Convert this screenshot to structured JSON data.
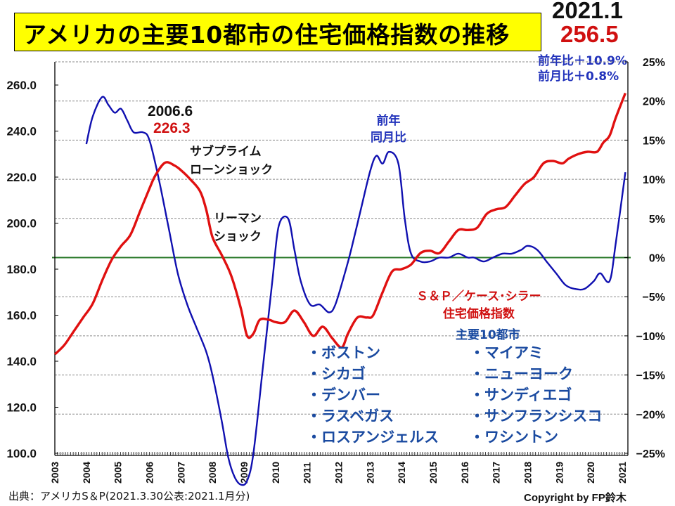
{
  "title": "アメリカの主要10都市の住宅価格指数の推移",
  "latest": {
    "date": "2021.1",
    "value": "256.5",
    "yoy": "前年比＋10.9%",
    "mom": "前月比＋0.8%"
  },
  "annotations": {
    "peak_date": "2006.6",
    "peak_value": "226.3",
    "subprime": [
      "サブプライム",
      "ローンショック"
    ],
    "lehman": [
      "リーマン",
      "ショック"
    ],
    "yoy_label": [
      "前年",
      "同月比"
    ]
  },
  "legend": {
    "index_name": [
      "Ｓ＆Ｐ／ケース･シラー",
      "住宅価格指数"
    ],
    "cities_title": "主要10都市",
    "cities_left": [
      "・ボストン",
      "・シカゴ",
      "・デンバー",
      "・ラスベガス",
      "・ロスアンジェルス"
    ],
    "cities_right": [
      "・マイアミ",
      "・ニューヨーク",
      "・サンディエゴ",
      "・サンフランシスコ",
      "・ワシントン"
    ]
  },
  "source": "出典：アメリカS＆P(2021.3.30公表:2021.1月分)",
  "copyright": "Copyright by FP鈴木",
  "colors": {
    "index_line": "#e01010",
    "yoy_line": "#1010b0",
    "zero_line": "#2a7a2a",
    "title_bg": "#ffff00"
  },
  "chart_data": {
    "type": "line",
    "title": "アメリカの主要10都市の住宅価格指数の推移",
    "xlabel": "",
    "ylabel": "",
    "x_range": [
      2003,
      2021.1
    ],
    "x_ticks": [
      "2003",
      "2004",
      "2005",
      "2006",
      "2007",
      "2008",
      "2009",
      "2010",
      "2011",
      "2012",
      "2013",
      "2014",
      "2015",
      "2016",
      "2017",
      "2018",
      "2019",
      "2020",
      "2021"
    ],
    "y_left": {
      "range": [
        100,
        260
      ],
      "ticks": [
        "100.0",
        "120.0",
        "140.0",
        "160.0",
        "180.0",
        "200.0",
        "220.0",
        "240.0",
        "260.0"
      ]
    },
    "y_right": {
      "range": [
        -25,
        25
      ],
      "ticks": [
        "-25%",
        "-20%",
        "-15%",
        "-10%",
        "-5%",
        "0%",
        "5%",
        "10%",
        "15%",
        "20%",
        "25%"
      ]
    },
    "grid": true,
    "series": [
      {
        "name": "S&P/ケース・シラー住宅価格指数 主要10都市",
        "axis": "left",
        "points": [
          [
            2003.0,
            143
          ],
          [
            2003.3,
            147
          ],
          [
            2003.6,
            153
          ],
          [
            2003.9,
            159
          ],
          [
            2004.2,
            165
          ],
          [
            2004.5,
            175
          ],
          [
            2004.8,
            184
          ],
          [
            2005.1,
            190
          ],
          [
            2005.4,
            195
          ],
          [
            2005.7,
            205
          ],
          [
            2006.0,
            215
          ],
          [
            2006.2,
            221
          ],
          [
            2006.5,
            226.3
          ],
          [
            2006.8,
            225
          ],
          [
            2007.0,
            223
          ],
          [
            2007.3,
            219
          ],
          [
            2007.6,
            214
          ],
          [
            2007.8,
            206
          ],
          [
            2008.0,
            194
          ],
          [
            2008.3,
            186
          ],
          [
            2008.6,
            177
          ],
          [
            2008.9,
            163
          ],
          [
            2009.1,
            151
          ],
          [
            2009.3,
            152
          ],
          [
            2009.5,
            158
          ],
          [
            2009.8,
            158
          ],
          [
            2010.0,
            157
          ],
          [
            2010.3,
            157
          ],
          [
            2010.6,
            162
          ],
          [
            2010.9,
            157
          ],
          [
            2011.2,
            151
          ],
          [
            2011.5,
            155
          ],
          [
            2011.8,
            150
          ],
          [
            2012.1,
            146
          ],
          [
            2012.3,
            152
          ],
          [
            2012.6,
            159
          ],
          [
            2012.9,
            159
          ],
          [
            2013.1,
            160
          ],
          [
            2013.4,
            170
          ],
          [
            2013.7,
            179
          ],
          [
            2014.0,
            180
          ],
          [
            2014.3,
            182
          ],
          [
            2014.6,
            187
          ],
          [
            2014.9,
            188
          ],
          [
            2015.2,
            187
          ],
          [
            2015.5,
            192
          ],
          [
            2015.8,
            197
          ],
          [
            2016.1,
            197
          ],
          [
            2016.4,
            198
          ],
          [
            2016.7,
            204
          ],
          [
            2017.0,
            206
          ],
          [
            2017.3,
            207
          ],
          [
            2017.6,
            212
          ],
          [
            2017.9,
            217
          ],
          [
            2018.2,
            220
          ],
          [
            2018.5,
            226
          ],
          [
            2018.8,
            227
          ],
          [
            2019.1,
            226
          ],
          [
            2019.3,
            228
          ],
          [
            2019.6,
            230
          ],
          [
            2019.9,
            231
          ],
          [
            2020.2,
            231
          ],
          [
            2020.4,
            235
          ],
          [
            2020.6,
            238
          ],
          [
            2020.8,
            246
          ],
          [
            2021.1,
            256.5
          ]
        ]
      },
      {
        "name": "前年同月比",
        "axis": "right",
        "points": [
          [
            2004.0,
            14.5
          ],
          [
            2004.2,
            18
          ],
          [
            2004.5,
            20.5
          ],
          [
            2004.7,
            19.5
          ],
          [
            2004.9,
            18.5
          ],
          [
            2005.1,
            19
          ],
          [
            2005.3,
            17.5
          ],
          [
            2005.5,
            16
          ],
          [
            2005.8,
            16
          ],
          [
            2006.0,
            15
          ],
          [
            2006.3,
            10
          ],
          [
            2006.6,
            4
          ],
          [
            2006.9,
            -2
          ],
          [
            2007.2,
            -6
          ],
          [
            2007.5,
            -9
          ],
          [
            2007.8,
            -12
          ],
          [
            2008.0,
            -15
          ],
          [
            2008.3,
            -21
          ],
          [
            2008.5,
            -25.5
          ],
          [
            2008.7,
            -28
          ],
          [
            2008.9,
            -29
          ],
          [
            2009.1,
            -28.5
          ],
          [
            2009.3,
            -25
          ],
          [
            2009.6,
            -14
          ],
          [
            2009.9,
            -3
          ],
          [
            2010.1,
            4
          ],
          [
            2010.4,
            5
          ],
          [
            2010.6,
            1
          ],
          [
            2010.8,
            -3
          ],
          [
            2011.1,
            -6
          ],
          [
            2011.4,
            -6
          ],
          [
            2011.7,
            -7
          ],
          [
            2011.9,
            -6
          ],
          [
            2012.2,
            -2
          ],
          [
            2012.4,
            1
          ],
          [
            2012.7,
            6
          ],
          [
            2013.0,
            11
          ],
          [
            2013.2,
            13
          ],
          [
            2013.4,
            12
          ],
          [
            2013.6,
            13.5
          ],
          [
            2013.9,
            12
          ],
          [
            2014.1,
            5
          ],
          [
            2014.3,
            0.5
          ],
          [
            2014.6,
            -0.5
          ],
          [
            2014.9,
            -0.5
          ],
          [
            2015.2,
            0
          ],
          [
            2015.5,
            0
          ],
          [
            2015.8,
            0.5
          ],
          [
            2016.1,
            0
          ],
          [
            2016.3,
            0
          ],
          [
            2016.6,
            -0.5
          ],
          [
            2016.9,
            0
          ],
          [
            2017.2,
            0.5
          ],
          [
            2017.5,
            0.5
          ],
          [
            2017.8,
            1
          ],
          [
            2018.0,
            1.5
          ],
          [
            2018.3,
            1
          ],
          [
            2018.6,
            -0.5
          ],
          [
            2018.9,
            -2
          ],
          [
            2019.2,
            -3.5
          ],
          [
            2019.5,
            -4
          ],
          [
            2019.8,
            -4
          ],
          [
            2020.1,
            -3
          ],
          [
            2020.3,
            -2
          ],
          [
            2020.6,
            -3
          ],
          [
            2020.8,
            2
          ],
          [
            2021.1,
            10.9
          ]
        ]
      }
    ]
  }
}
